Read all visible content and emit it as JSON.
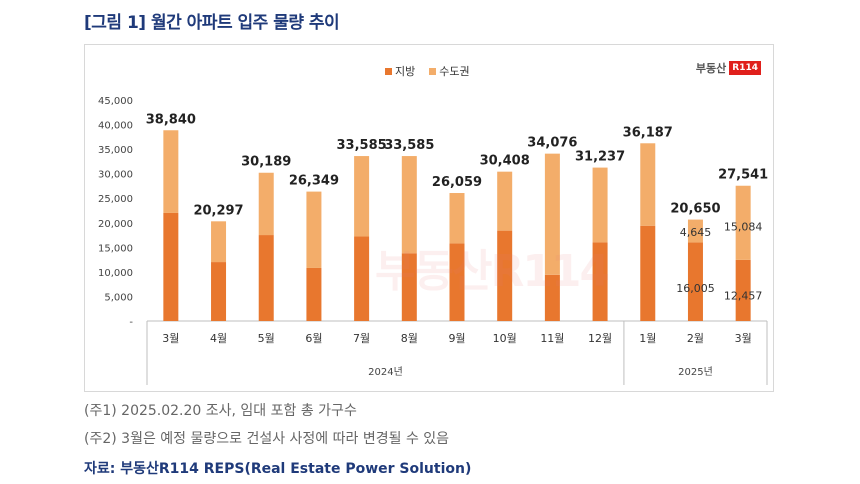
{
  "figure_title": "[그림 1] 월간 아파트 입주 물량 추이",
  "logo": {
    "text": "부동산",
    "badge": "R114"
  },
  "watermark": "부동산R114",
  "notes": [
    "(주1) 2025.02.20 조사, 임대 포함 총 가구수",
    "(주2) 3월은 예정 물량으로 건설사 사정에 따라 변경될 수 있음"
  ],
  "source": "자료: 부동산R114 REPS(Real Estate Power Solution)",
  "colors": {
    "지방": "#e8772e",
    "수도권": "#f3ad6a"
  },
  "chart_data": {
    "type": "bar",
    "stacked": true,
    "categories": [
      "3월",
      "4월",
      "5월",
      "6월",
      "7월",
      "8월",
      "9월",
      "10월",
      "11월",
      "12월",
      "1월",
      "2월",
      "3월"
    ],
    "groups": [
      {
        "label": "2024년",
        "from": 0,
        "to": 9
      },
      {
        "label": "2025년",
        "from": 10,
        "to": 12
      }
    ],
    "series": [
      {
        "name": "지방",
        "values": [
          22000,
          12000,
          17500,
          10800,
          17200,
          13800,
          15800,
          18400,
          9400,
          16000,
          19400,
          16005,
          12457
        ]
      },
      {
        "name": "수도권",
        "values": [
          16840,
          8297,
          12689,
          15549,
          16385,
          19785,
          10259,
          12008,
          24676,
          15237,
          16787,
          4645,
          15084
        ]
      }
    ],
    "totals": [
      38840,
      20297,
      30189,
      26349,
      33585,
      33585,
      26059,
      30408,
      34076,
      31237,
      36187,
      20650,
      27541
    ],
    "total_labels": [
      "38,840",
      "20,297",
      "30,189",
      "26,349",
      "33,585",
      "33,585",
      "26,059",
      "30,408",
      "34,076",
      "31,237",
      "36,187",
      "20,650",
      "27,541"
    ],
    "inner_labels": [
      {
        "index": 11,
        "series": "수도권",
        "text": "4,645"
      },
      {
        "index": 11,
        "series": "지방",
        "text": "16,005"
      },
      {
        "index": 12,
        "series": "수도권",
        "text": "15,084"
      },
      {
        "index": 12,
        "series": "지방",
        "text": "12,457"
      }
    ],
    "ylim": [
      0,
      45000
    ],
    "yticks": [
      0,
      5000,
      10000,
      15000,
      20000,
      25000,
      30000,
      35000,
      40000,
      45000
    ],
    "ytick_labels": [
      "-",
      "5,000",
      "10,000",
      "15,000",
      "20,000",
      "25,000",
      "30,000",
      "35,000",
      "40,000",
      "45,000"
    ],
    "legend": [
      "지방",
      "수도권"
    ],
    "legend_position": "top-center",
    "grid": false
  }
}
